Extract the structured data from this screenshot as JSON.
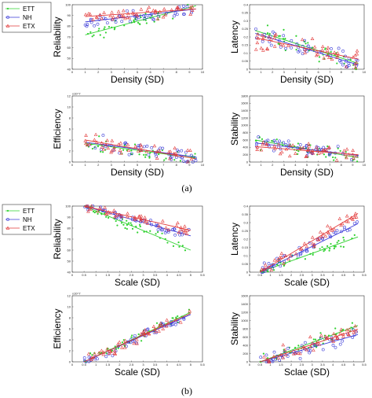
{
  "figure": {
    "panel_labels": [
      "(a)",
      "(b)"
    ]
  },
  "legend": {
    "entries": [
      {
        "name": "ETT",
        "color": "#2fd12f",
        "marker": "*"
      },
      {
        "name": "NH",
        "color": "#3a3ad8",
        "marker": "o"
      },
      {
        "name": "ETX",
        "color": "#e23a3a",
        "marker": "triangle"
      }
    ]
  },
  "colors": {
    "ETT": "#2fd12f",
    "NH": "#3a3ad8",
    "ETX": "#e23a3a"
  },
  "chart_data": [
    {
      "id": "a1",
      "type": "scatter",
      "panel": "(a)",
      "xlabel": "Density (SD)",
      "ylabel": "Reliability",
      "xlim": [
        0,
        10
      ],
      "ylim": [
        40,
        100
      ],
      "xticks": [
        "0",
        "1",
        "2",
        "3",
        "4",
        "5",
        "6",
        "7",
        "8",
        "9",
        "10"
      ],
      "yticks": [
        "40",
        "50",
        "60",
        "70",
        "80",
        "90",
        "100"
      ],
      "series": [
        {
          "name": "ETT",
          "trend": [
            [
              1,
              72
            ],
            [
              9.5,
              99
            ]
          ]
        },
        {
          "name": "NH",
          "trend": [
            [
              1,
              84
            ],
            [
              9.5,
              96
            ]
          ]
        },
        {
          "name": "ETX",
          "trend": [
            [
              1,
              89
            ],
            [
              9.5,
              96
            ]
          ]
        }
      ]
    },
    {
      "id": "a2",
      "type": "scatter",
      "panel": "(a)",
      "xlabel": "Density (SD)",
      "ylabel": "Latency",
      "xlim": [
        0,
        10
      ],
      "ylim": [
        0,
        0.45
      ],
      "xticks": [
        "0",
        "1",
        "2",
        "3",
        "4",
        "5",
        "6",
        "7",
        "8",
        "9",
        "10"
      ],
      "yticks": [
        "0",
        "0.05",
        "0.1",
        "0.15",
        "0.2",
        "0.25",
        "0.3",
        "0.35",
        "0.4"
      ],
      "series": [
        {
          "name": "ETT",
          "trend": [
            [
              0.5,
              0.27
            ],
            [
              9.5,
              0.04
            ]
          ]
        },
        {
          "name": "NH",
          "trend": [
            [
              0.5,
              0.25
            ],
            [
              9.5,
              0.03
            ]
          ]
        },
        {
          "name": "ETX",
          "trend": [
            [
              0.5,
              0.22
            ],
            [
              9.5,
              0.07
            ]
          ]
        }
      ]
    },
    {
      "id": "a3",
      "type": "scatter",
      "panel": "(a)",
      "xlabel": "Density (SD)",
      "ylabel": "Efficiency",
      "y_exponent": "x10^7",
      "xlim": [
        0,
        10
      ],
      "ylim": [
        0,
        12
      ],
      "xticks": [
        "0",
        "1",
        "2",
        "3",
        "4",
        "5",
        "6",
        "7",
        "8",
        "9",
        "10"
      ],
      "yticks": [
        "0",
        "2",
        "4",
        "6",
        "8",
        "10",
        "12"
      ],
      "series": [
        {
          "name": "ETT",
          "trend": [
            [
              1,
              3.4
            ],
            [
              9.5,
              0.7
            ]
          ]
        },
        {
          "name": "NH",
          "trend": [
            [
              1,
              3.6
            ],
            [
              9.5,
              0.9
            ]
          ]
        },
        {
          "name": "ETX",
          "trend": [
            [
              1,
              4.0
            ],
            [
              9.5,
              0.6
            ]
          ]
        }
      ]
    },
    {
      "id": "a4",
      "type": "scatter",
      "panel": "(a)",
      "xlabel": "Density (SD)",
      "ylabel": "Stability",
      "xlim": [
        0,
        10
      ],
      "ylim": [
        0,
        1800
      ],
      "xticks": [
        "0",
        "1",
        "2",
        "3",
        "4",
        "5",
        "6",
        "7",
        "8",
        "9",
        "10"
      ],
      "yticks": [
        "0",
        "200",
        "400",
        "600",
        "800",
        "1000",
        "1200",
        "1400",
        "1600",
        "1800"
      ],
      "series": [
        {
          "name": "ETT",
          "trend": [
            [
              0.5,
              600
            ],
            [
              9.5,
              120
            ]
          ]
        },
        {
          "name": "NH",
          "trend": [
            [
              0.5,
              520
            ],
            [
              9.5,
              180
            ]
          ]
        },
        {
          "name": "ETX",
          "trend": [
            [
              0.5,
              420
            ],
            [
              9.5,
              200
            ]
          ]
        }
      ]
    },
    {
      "id": "b1",
      "type": "scatter",
      "panel": "(b)",
      "xlabel": "Scale (SD)",
      "ylabel": "Reliability",
      "xlim": [
        0,
        5.5
      ],
      "ylim": [
        40,
        100
      ],
      "xticks": [
        "0",
        "0.5",
        "1",
        "1.5",
        "2",
        "2.5",
        "3",
        "3.5",
        "4",
        "4.5",
        "5",
        "5.5"
      ],
      "yticks": [
        "40",
        "50",
        "60",
        "70",
        "80",
        "90",
        "100"
      ],
      "series": [
        {
          "name": "ETT",
          "trend": [
            [
              0.5,
              100
            ],
            [
              5,
              60
            ]
          ]
        },
        {
          "name": "NH",
          "trend": [
            [
              0.5,
              100
            ],
            [
              5,
              73
            ]
          ]
        },
        {
          "name": "ETX",
          "trend": [
            [
              0.5,
              100
            ],
            [
              5,
              78
            ]
          ]
        }
      ]
    },
    {
      "id": "b2",
      "type": "scatter",
      "panel": "(b)",
      "xlabel": "Scale (SD)",
      "ylabel": "Latency",
      "xlim": [
        0,
        5.5
      ],
      "ylim": [
        0,
        0.45
      ],
      "xticks": [
        "0",
        "0.5",
        "1",
        "1.5",
        "2",
        "2.5",
        "3",
        "3.5",
        "4",
        "4.5",
        "5",
        "5.5"
      ],
      "yticks": [
        "0",
        "0.05",
        "0.1",
        "0.15",
        "0.2",
        "0.25",
        "0.3",
        "0.35",
        "0.4"
      ],
      "series": [
        {
          "name": "ETT",
          "trend": [
            [
              0.5,
              0.0
            ],
            [
              5.2,
              0.24
            ]
          ]
        },
        {
          "name": "NH",
          "trend": [
            [
              0.5,
              0.0
            ],
            [
              5.2,
              0.33
            ]
          ]
        },
        {
          "name": "ETX",
          "trend": [
            [
              0.5,
              0.0
            ],
            [
              5.2,
              0.4
            ]
          ]
        }
      ]
    },
    {
      "id": "b3",
      "type": "scatter",
      "panel": "(b)",
      "xlabel": "Scale (SD)",
      "ylabel": "Efficiency",
      "y_exponent": "x10^7",
      "xlim": [
        0,
        5.5
      ],
      "ylim": [
        0,
        12
      ],
      "xticks": [
        "0",
        "0.5",
        "1",
        "1.5",
        "2",
        "2.5",
        "3",
        "3.5",
        "4",
        "4.5",
        "5",
        "5.5"
      ],
      "yticks": [
        "0",
        "2",
        "4",
        "6",
        "8",
        "10",
        "12"
      ],
      "series": [
        {
          "name": "ETT",
          "trend": [
            [
              0.5,
              0.0
            ],
            [
              5,
              9.0
            ]
          ]
        },
        {
          "name": "NH",
          "trend": [
            [
              0.5,
              0.0
            ],
            [
              5,
              8.6
            ]
          ]
        },
        {
          "name": "ETX",
          "trend": [
            [
              0.5,
              0.0
            ],
            [
              5,
              8.8
            ]
          ]
        }
      ]
    },
    {
      "id": "b4",
      "type": "scatter",
      "panel": "(b)",
      "xlabel": "Sclae (SD)",
      "ylabel": "Stability",
      "xlim": [
        0,
        5.5
      ],
      "ylim": [
        0,
        1600
      ],
      "xticks": [
        "0",
        "0.5",
        "1",
        "1.5",
        "2",
        "2.5",
        "3",
        "3.5",
        "4",
        "4.5",
        "5",
        "5.5"
      ],
      "yticks": [
        "0",
        "200",
        "400",
        "600",
        "800",
        "1000",
        "1200",
        "1400",
        "1600"
      ],
      "series": [
        {
          "name": "ETT",
          "trend": [
            [
              0.5,
              0
            ],
            [
              5.2,
              880
            ]
          ]
        },
        {
          "name": "NH",
          "trend": [
            [
              0.5,
              0
            ],
            [
              5.2,
              660
            ]
          ]
        },
        {
          "name": "ETX",
          "trend": [
            [
              0.5,
              0
            ],
            [
              5.2,
              790
            ]
          ]
        }
      ]
    }
  ]
}
